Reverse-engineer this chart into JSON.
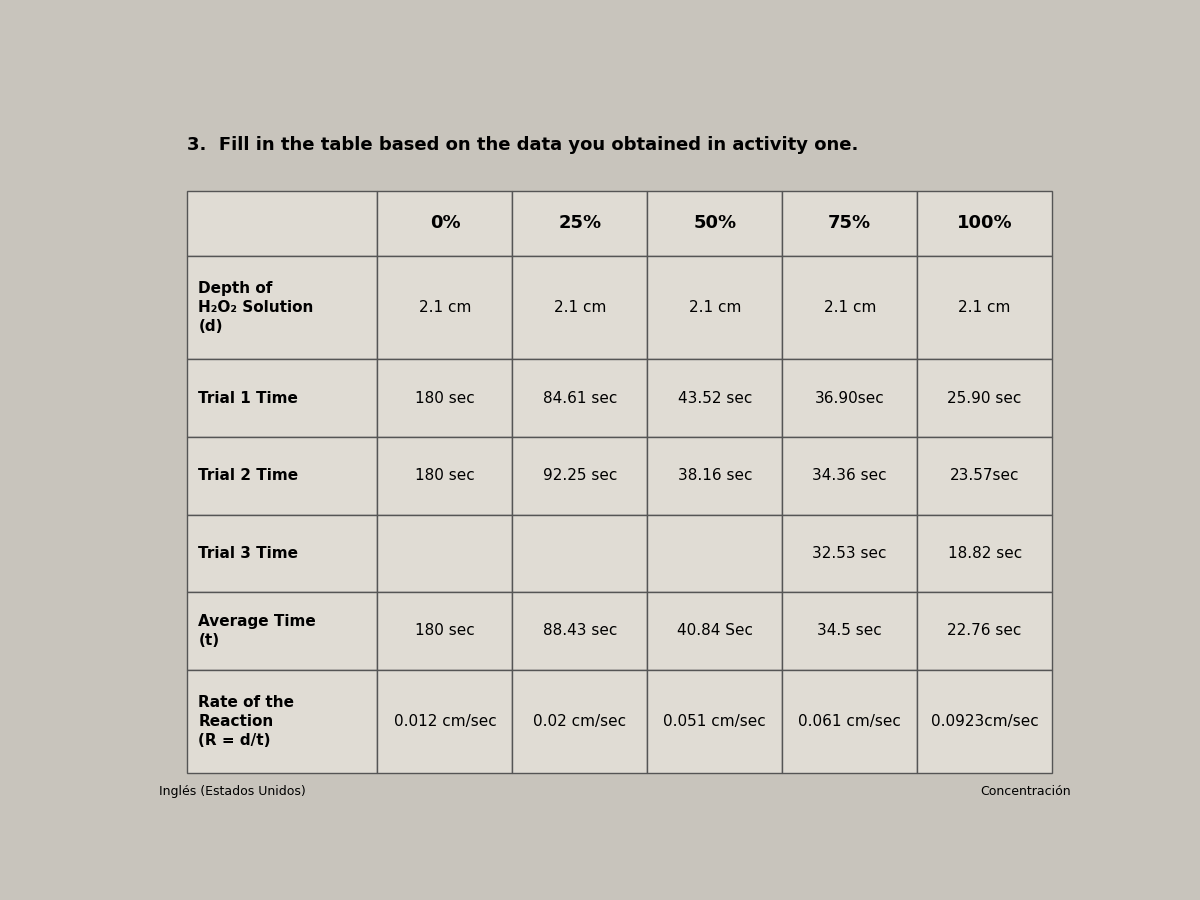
{
  "title": "3.  Fill in the table based on the data you obtained in activity one.",
  "bg_color": "#c8c4bc",
  "cell_bg": "#e0dcd4",
  "border_color": "#555555",
  "columns": [
    "",
    "0%",
    "25%",
    "50%",
    "75%",
    "100%"
  ],
  "rows": [
    {
      "label": "Depth of\nH₂O₂ Solution\n(d)",
      "values": [
        "2.1 cm",
        "2.1 cm",
        "2.1 cm",
        "2.1 cm",
        "2.1 cm"
      ]
    },
    {
      "label": "Trial 1 Time",
      "values": [
        "180 sec",
        "84.61 sec",
        "43.52 sec",
        "36.90sec",
        "25.90 sec"
      ]
    },
    {
      "label": "Trial 2 Time",
      "values": [
        "180 sec",
        "92.25 sec",
        "38.16 sec",
        "34.36 sec",
        "23.57sec"
      ]
    },
    {
      "label": "Trial 3 Time",
      "values": [
        "",
        "",
        "",
        "32.53 sec",
        "18.82 sec"
      ]
    },
    {
      "label": "Average Time\n(t)",
      "values": [
        "180 sec",
        "88.43 sec",
        "40.84 Sec",
        "34.5 sec",
        "22.76 sec"
      ]
    },
    {
      "label": "Rate of the\nReaction\n(R = d/t)",
      "values": [
        "0.012 cm/sec",
        "0.02 cm/sec",
        "0.051 cm/sec",
        "0.061 cm/sec",
        "0.0923cm/sec"
      ]
    }
  ],
  "footer_left": "Inglés (Estados Unidos)",
  "footer_right": "Concentración",
  "font_size_title": 13,
  "font_size_header": 13,
  "font_size_cell": 11,
  "font_size_footer": 9
}
